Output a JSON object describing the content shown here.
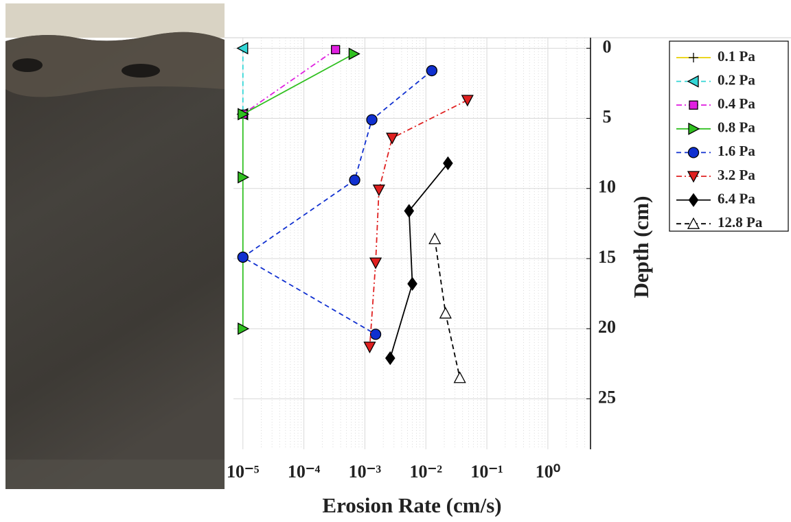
{
  "chart_data": {
    "type": "line",
    "xlabel": "Erosion Rate (cm/s)",
    "ylabel": "Depth (cm)",
    "xscale": "log",
    "yreversed": true,
    "grid": true,
    "xlim": [
      7e-06,
      5
    ],
    "ylim": [
      -0.75,
      28.6
    ],
    "xticks": [
      {
        "value": 1e-05,
        "label": "10⁻⁵"
      },
      {
        "value": 0.0001,
        "label": "10⁻⁴"
      },
      {
        "value": 0.001,
        "label": "10⁻³"
      },
      {
        "value": 0.01,
        "label": "10⁻²"
      },
      {
        "value": 0.1,
        "label": "10⁻¹"
      },
      {
        "value": 1,
        "label": "10⁰"
      }
    ],
    "yticks": [
      0,
      5,
      10,
      15,
      20,
      25
    ],
    "series": [
      {
        "name": "0.1 Pa",
        "color": "#e8d000",
        "marker": "plus",
        "linestyle": "solid",
        "x": [],
        "values": []
      },
      {
        "name": "0.2 Pa",
        "color": "#33d6d6",
        "marker": "triangle-left",
        "linestyle": "dashed",
        "x": [
          1e-05,
          1e-05
        ],
        "values": [
          0,
          4.7
        ]
      },
      {
        "name": "0.4 Pa",
        "color": "#e020e0",
        "marker": "square",
        "linestyle": "dashdot",
        "x": [
          0.00033,
          1e-05
        ],
        "values": [
          0.1,
          4.7
        ]
      },
      {
        "name": "0.8 Pa",
        "color": "#30c020",
        "marker": "triangle-right",
        "linestyle": "solid",
        "x": [
          0.00066,
          1e-05,
          1e-05,
          1e-05
        ],
        "values": [
          0.4,
          4.7,
          9.2,
          20
        ]
      },
      {
        "name": "1.6 Pa",
        "color": "#1030d0",
        "marker": "circle",
        "linestyle": "dashed",
        "x": [
          0.0125,
          0.0013,
          0.00068,
          1e-05,
          0.0015
        ],
        "values": [
          1.6,
          5.1,
          9.4,
          14.9,
          20.4
        ]
      },
      {
        "name": "3.2 Pa",
        "color": "#e02020",
        "marker": "triangle-down",
        "linestyle": "dashdot",
        "x": [
          0.048,
          0.0028,
          0.0017,
          0.0015,
          0.0012
        ],
        "values": [
          3.7,
          6.4,
          10.1,
          15.3,
          21.3
        ]
      },
      {
        "name": "6.4 Pa",
        "color": "#000000",
        "marker": "diamond",
        "linestyle": "solid",
        "x": [
          0.023,
          0.0053,
          0.006,
          0.0026
        ],
        "values": [
          8.2,
          11.6,
          16.8,
          22.1
        ]
      },
      {
        "name": "12.8 Pa",
        "color": "#000000",
        "marker": "triangle-up-open",
        "linestyle": "dashed",
        "x": [
          0.014,
          0.021,
          0.036
        ],
        "values": [
          13.6,
          18.9,
          23.5
        ]
      }
    ]
  }
}
